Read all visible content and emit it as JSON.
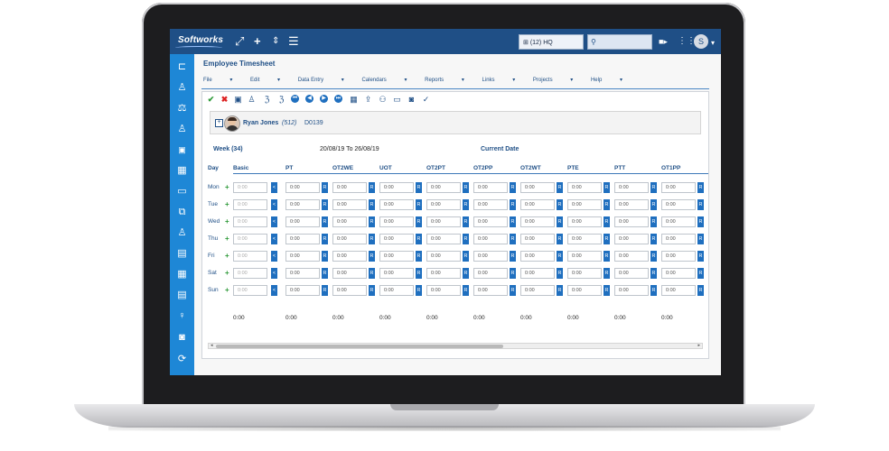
{
  "app": {
    "logo": "Softworks"
  },
  "topbar": {
    "selector_value": "(12) HQ",
    "search_placeholder": "",
    "user_initial": "S",
    "colors": {
      "bar": "#1f4f86",
      "sidebar": "#1e87d6"
    }
  },
  "page": {
    "title": "Employee Timesheet",
    "menu": [
      "File",
      "Edit",
      "Data Entry",
      "Calendars",
      "Reports",
      "Links",
      "Projects",
      "Help"
    ]
  },
  "employee": {
    "name": "Ryan Jones",
    "code": "(512)",
    "id": "D0139"
  },
  "period": {
    "week": "Week (34)",
    "range": "20/08/19 To 26/08/19",
    "current": "Current Date"
  },
  "timesheet": {
    "day_header": "Day",
    "columns": [
      "Basic",
      "PT",
      "OT2WE",
      "UOT",
      "OT2PT",
      "OT2PP",
      "OT2WT",
      "PTE",
      "PTT",
      "OT1PP"
    ],
    "days": [
      "Mon",
      "Tue",
      "Wed",
      "Thu",
      "Fri",
      "Sat",
      "Sun"
    ],
    "cell_value": "0:00",
    "lock_tag": "<",
    "rate_tag": "R",
    "totals": [
      "0:00",
      "0:00",
      "0:00",
      "0:00",
      "0:00",
      "0:00",
      "0:00",
      "0:00",
      "0:00",
      "0:00"
    ]
  },
  "icons": {
    "topbar": [
      "expand-icon",
      "plus-icon",
      "sort-icon",
      "menu-icon",
      "org-icon",
      "user-search-icon",
      "video-icon",
      "apps-grid-icon",
      "chevron-down-icon"
    ],
    "sidebar": [
      "org-chart-icon",
      "people-icon",
      "scales-icon",
      "user-gear-icon",
      "calendar-15-icon",
      "calendar-edit-icon",
      "calendar-icon",
      "copy-icon",
      "user-icon",
      "briefcase-icon",
      "calendar-grid-icon",
      "calendar-list-icon",
      "location-icon",
      "frame-icon",
      "refresh-icon"
    ]
  }
}
